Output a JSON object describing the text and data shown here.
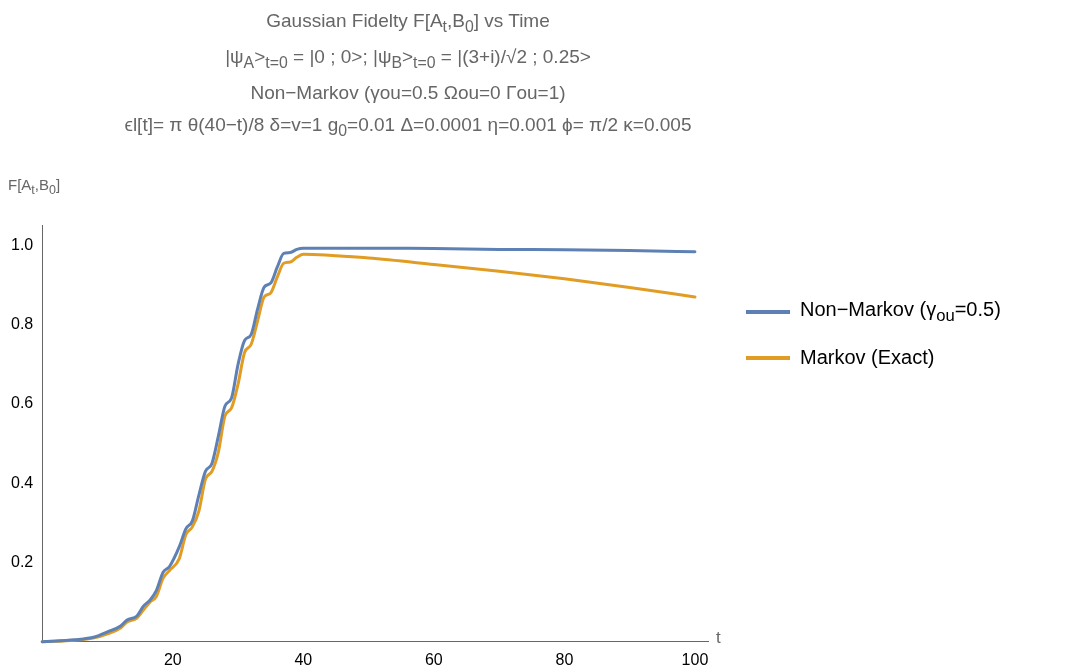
{
  "chart_data": {
    "type": "line",
    "title": "Gaussian Fidelty F[A$_{t}$,B$_{0}$] vs Time",
    "subtitle": "|ψ$_{A}$>$_{t=0}$ = |0 ; 0>; |ψ$_{B}$>$_{t=0}$ = |(3+i)/√2 ; 0.25>",
    "annotations": [
      "Non−Markov (γou=0.5  Ωou=0 Γou=1)",
      "ϵl[t]= π θ(40−t)/8 δ=v=1 g$_{0}$=0.01 Δ=0.0001 η=0.001 ϕ= π/2 κ=0.005"
    ],
    "xlabel": "t",
    "ylabel": "F[A$_{t}$,B$_{0}$]",
    "xlim": [
      0,
      102
    ],
    "ylim": [
      0,
      1.05
    ],
    "xticks": [
      20,
      40,
      60,
      80,
      100
    ],
    "yticks": [
      0.2,
      0.4,
      0.6,
      0.8,
      {
        "value": 1,
        "label": "1.0"
      }
    ],
    "grid": false,
    "legend": "right",
    "marker": "none",
    "line_style": "solid",
    "series": [
      {
        "name": "Non−Markov (γ$_{ou}$=0.5)",
        "color": "#5e81b5",
        "x": [
          0,
          5,
          8,
          10,
          12,
          13,
          14.5,
          15.5,
          16.5,
          17.5,
          18.5,
          19.5,
          21,
          22,
          23,
          24,
          25,
          26,
          27,
          28,
          29,
          30,
          31,
          32,
          33,
          34,
          35,
          36,
          37,
          38,
          39,
          40,
          50,
          60,
          70,
          80,
          90,
          100
        ],
        "values": [
          0,
          0.005,
          0.012,
          0.025,
          0.04,
          0.055,
          0.065,
          0.09,
          0.105,
          0.13,
          0.175,
          0.19,
          0.24,
          0.285,
          0.305,
          0.37,
          0.43,
          0.45,
          0.52,
          0.595,
          0.615,
          0.7,
          0.76,
          0.775,
          0.84,
          0.895,
          0.905,
          0.945,
          0.98,
          0.982,
          0.99,
          0.993,
          0.993,
          0.992,
          0.99,
          0.989,
          0.987,
          0.984
        ]
      },
      {
        "name": "Markov (Exact)",
        "color": "#e19c24",
        "x": [
          0,
          5,
          8,
          10,
          12,
          13,
          14.5,
          15.5,
          16.5,
          17.5,
          18.5,
          19.5,
          21,
          22,
          23,
          24,
          25,
          26,
          27,
          28,
          29,
          30,
          31,
          32,
          33,
          34,
          35,
          36,
          37,
          38,
          39,
          40,
          50,
          60,
          70,
          80,
          90,
          100
        ],
        "values": [
          0,
          0.004,
          0.01,
          0.02,
          0.035,
          0.05,
          0.06,
          0.08,
          0.1,
          0.115,
          0.16,
          0.18,
          0.21,
          0.27,
          0.29,
          0.33,
          0.41,
          0.43,
          0.48,
          0.57,
          0.59,
          0.65,
          0.73,
          0.75,
          0.81,
          0.87,
          0.88,
          0.92,
          0.955,
          0.958,
          0.97,
          0.978,
          0.968,
          0.952,
          0.935,
          0.916,
          0.894,
          0.87
        ]
      }
    ]
  }
}
